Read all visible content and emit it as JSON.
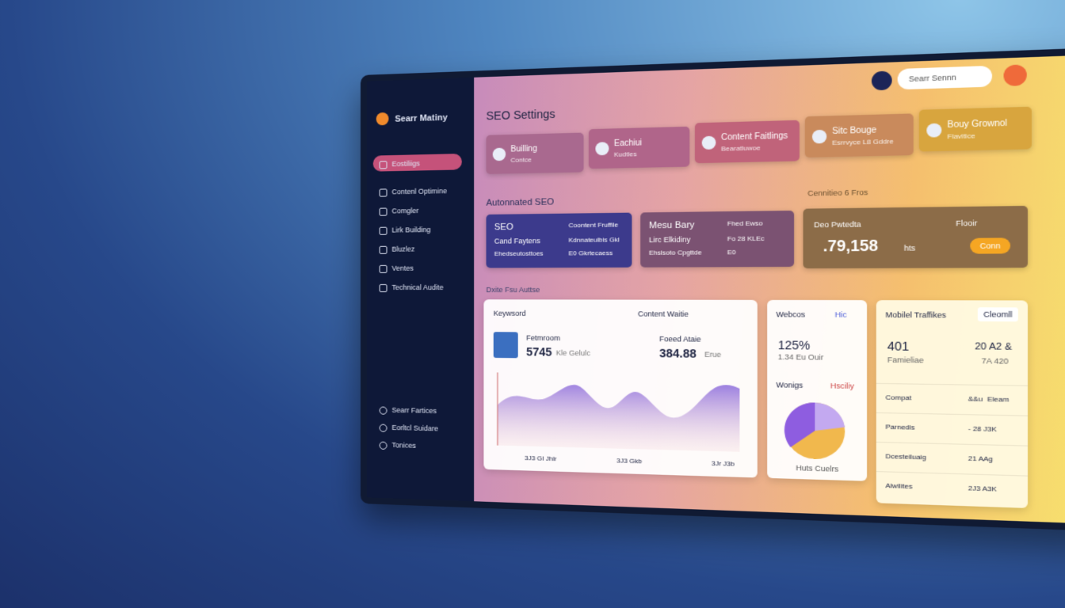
{
  "sidebar": {
    "brand": "Searr Matiny",
    "nav": [
      "Eostiliigs",
      "Contenl Optimine",
      "Comgler",
      "Lirk Building",
      "Bluzlez",
      "Ventes",
      "Technical Audite"
    ],
    "footer": [
      "Searr Fartices",
      "Eorltcl Suidare",
      "Tonices"
    ]
  },
  "header": {
    "title": "SEO Settings",
    "search": "Searr Sennn"
  },
  "top_cards": [
    {
      "title": "Builling",
      "sub": "Contce"
    },
    {
      "title": "Eachiui",
      "sub": "Kudtles"
    },
    {
      "title": "Content Faitlings",
      "sub": "Bearatluwoe"
    },
    {
      "title": "Sitc Bouge",
      "sub": "Esrrvyce L8 Gddre"
    },
    {
      "title": "Bouy Grownol",
      "sub": "Flavitice"
    }
  ],
  "section1": {
    "left": "Autonnated SEO",
    "right": "Cennitieo 6 Fros"
  },
  "mid_cards": [
    {
      "title": "SEO",
      "line1": "Cand Faytens",
      "line2": "Ehedseutosttoes",
      "right1": "Coontent Fruffile",
      "right2": "Kdnnateulbis  Gkl",
      "right3": "E0 Gkrtecaess"
    },
    {
      "title": "Mesu Bary",
      "line1": "Lirc Elkidiny",
      "line2": "Ehslsoto Cpgttde",
      "right1": "Fhed Ewso",
      "right2": "Fo 28 KLEc",
      "right3": "E0"
    }
  ],
  "stat_card": {
    "title": "Deo Pwtedta",
    "value": ".79,158",
    "unit": "hts",
    "right": "Flooir",
    "button": "Conn"
  },
  "section2": "Dxite Fsu Auttse",
  "keyword_panel": {
    "col1": "Keywsord",
    "col2": "Content Waitie",
    "name": "Fetmroom",
    "value1": "5745",
    "unit1": "Kle Gelulc",
    "label2": "Foeed Ataie",
    "value2": "384.88",
    "unit2": "Erue",
    "x_labels": [
      "3J3 GI Jhlr",
      "3J3 Gkb",
      "3Jr J3b"
    ]
  },
  "web_panel": {
    "title": "Webcos",
    "filter": "Hic",
    "value": "125%",
    "sub": "1.34 Eu Ouir",
    "title2": "Wonigs",
    "filter2": "Hsciliy",
    "caption": "Huts Cuelrs"
  },
  "mobile_panel": {
    "title": "Mobilel Traffikes",
    "button": "Cleomll",
    "value": "401",
    "value_right": "20 A2 &",
    "sub": "Famieliae",
    "sub_right": "7A 420",
    "rows": [
      [
        "Compat",
        "&&u",
        "Eleam"
      ],
      [
        "Parnedis",
        "- 28 J3K"
      ],
      [
        "Dcesteiluaig",
        "21 AAg"
      ],
      [
        "Alwilites",
        "2J3 A3K"
      ]
    ]
  }
}
